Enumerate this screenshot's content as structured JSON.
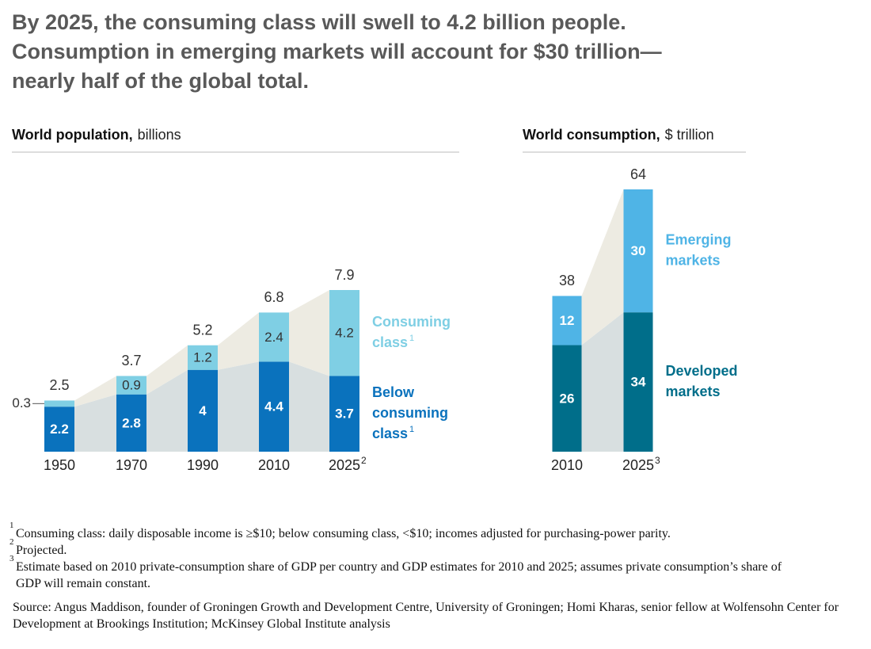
{
  "header": {
    "title_lines": [
      "By 2025, the consuming class will swell to 4.2 billion people.",
      "Consumption in emerging markets will account for $30 trillion—",
      "nearly half of the global total."
    ]
  },
  "chart_data": [
    {
      "type": "bar",
      "stacked": true,
      "title": "World population,",
      "unit": "billions",
      "categories": [
        "1950",
        "1970",
        "1990",
        "2010",
        "2025"
      ],
      "category_footnotes": [
        null,
        null,
        null,
        null,
        "2"
      ],
      "series": [
        {
          "name": "Below consuming class",
          "footnote": "1",
          "color": "#0a72bd",
          "values": [
            2.2,
            2.8,
            4.0,
            4.4,
            3.7
          ]
        },
        {
          "name": "Consuming class",
          "footnote": "1",
          "color": "#7fcfe4",
          "values": [
            0.3,
            0.9,
            1.2,
            2.4,
            4.2
          ]
        }
      ],
      "totals": [
        2.5,
        3.7,
        5.2,
        6.8,
        7.9
      ]
    },
    {
      "type": "bar",
      "stacked": true,
      "title": "World consumption,",
      "unit": "$ trillion",
      "categories": [
        "2010",
        "2025"
      ],
      "category_footnotes": [
        null,
        "3"
      ],
      "series": [
        {
          "name": "Developed markets",
          "footnote": null,
          "color": "#006e8a",
          "values": [
            26,
            34
          ]
        },
        {
          "name": "Emerging markets",
          "footnote": null,
          "color": "#4fb4e6",
          "values": [
            12,
            30
          ]
        }
      ],
      "totals": [
        38,
        64
      ]
    }
  ],
  "footnotes": [
    {
      "mark": "1",
      "text": "Consuming class: daily disposable income is ≥$10; below consuming class, <$10; incomes adjusted for purchasing-power parity."
    },
    {
      "mark": "2",
      "text": "Projected."
    },
    {
      "mark": "3",
      "text": "Estimate based on 2010 private-consumption share of GDP per country and GDP estimates for 2010 and 2025; assumes private consumption’s share of GDP will remain constant."
    }
  ],
  "source": "Source: Angus Maddison, founder of Groningen Growth and Development Centre, University of Groningen; Homi Kharas, senior fellow at Wolfensohn Center for Development at Brookings Institution; McKinsey Global Institute analysis"
}
